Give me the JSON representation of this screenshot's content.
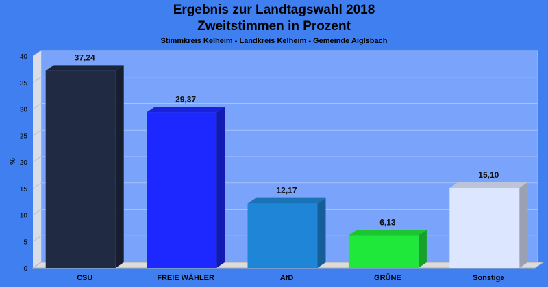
{
  "header": {
    "title": "Ergebnis zur Landtagswahl 2018",
    "subtitle": "Zweitstimmen in Prozent",
    "region": "Stimmkreis Kelheim - Landkreis Kelheim - Gemeinde Aiglsbach"
  },
  "chart_data": {
    "type": "bar",
    "title": "Ergebnis zur Landtagswahl 2018",
    "subtitle": "Zweitstimmen in Prozent",
    "xlabel": "",
    "ylabel": "%",
    "ylim": [
      0,
      40
    ],
    "yticks": [
      "0",
      "5",
      "10",
      "15",
      "20",
      "25",
      "30",
      "35",
      "40"
    ],
    "grid": true,
    "legend": "none",
    "categories": [
      "CSU",
      "FREIE WÄHLER",
      "AfD",
      "GRÜNE",
      "Sonstige"
    ],
    "values": [
      37.24,
      29.37,
      12.17,
      6.13,
      15.1
    ],
    "value_labels": [
      "37,24",
      "29,37",
      "12,17",
      "6,13",
      "15,10"
    ],
    "colors": [
      "#202b43",
      "#1d27ff",
      "#1f86d7",
      "#20e83a",
      "#dde6ff"
    ],
    "background_color": "#3f7ff0",
    "plot_color": "#7aa3fb"
  }
}
